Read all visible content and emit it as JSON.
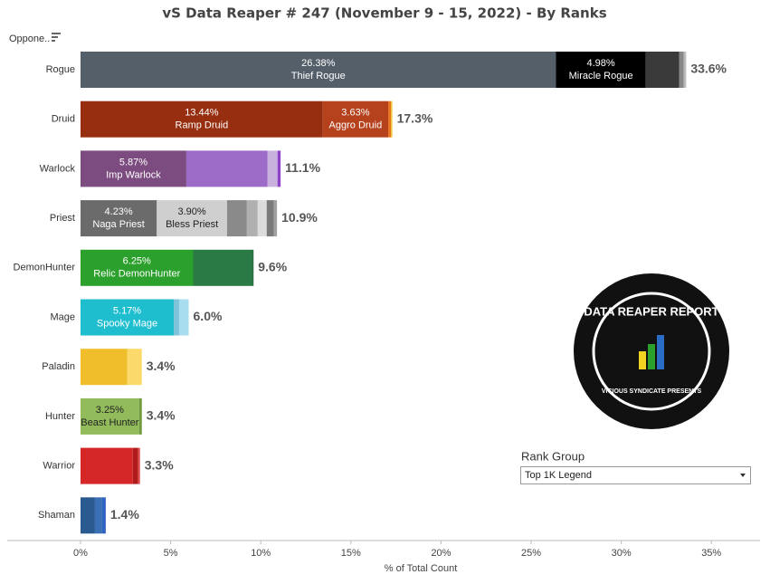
{
  "chart_data": {
    "type": "bar",
    "orientation": "horizontal",
    "stacked": true,
    "title": "vS Data Reaper #  247 (November 9 - 15, 2022) - By Ranks",
    "row_header": "Oppone..",
    "x_label": "% of Total Count",
    "xlim": [
      0,
      37.7
    ],
    "xticks": [
      {
        "value": 0,
        "label": "0%"
      },
      {
        "value": 5,
        "label": "5%"
      },
      {
        "value": 10,
        "label": "10%"
      },
      {
        "value": 15,
        "label": "15%"
      },
      {
        "value": 20,
        "label": "20%"
      },
      {
        "value": 25,
        "label": "25%"
      },
      {
        "value": 30,
        "label": "30%"
      },
      {
        "value": 35,
        "label": "35%"
      }
    ],
    "rows": [
      {
        "category": "Rogue",
        "total": {
          "value": 33.6,
          "label": "33.6%"
        },
        "segments": [
          {
            "name": "Thief Rogue",
            "value": 26.38,
            "value_label": "26.38%",
            "color": "#555f69"
          },
          {
            "name": "Miracle Rogue",
            "value": 4.98,
            "value_label": "4.98%",
            "color": "#000000"
          },
          {
            "value": 1.86,
            "color": "#3a3a3a"
          },
          {
            "value": 0.25,
            "color": "#888888"
          },
          {
            "value": 0.13,
            "color": "#bbbbbb"
          }
        ]
      },
      {
        "category": "Druid",
        "total": {
          "value": 17.3,
          "label": "17.3%"
        },
        "segments": [
          {
            "name": "Ramp Druid",
            "value": 13.44,
            "value_label": "13.44%",
            "color": "#962e0f"
          },
          {
            "name": "Aggro Druid",
            "value": 3.63,
            "value_label": "3.63%",
            "color": "#b5411d"
          },
          {
            "value": 0.15,
            "color": "#e8761e"
          },
          {
            "value": 0.08,
            "color": "#f3c23c"
          }
        ]
      },
      {
        "category": "Warlock",
        "total": {
          "value": 11.1,
          "label": "11.1%"
        },
        "segments": [
          {
            "name": "Imp Warlock",
            "value": 5.87,
            "value_label": "5.87%",
            "color": "#7c4b80"
          },
          {
            "value": 4.51,
            "color": "#9b6bc7"
          },
          {
            "value": 0.55,
            "color": "#c8b1dc"
          },
          {
            "value": 0.17,
            "color": "#8e44c9"
          }
        ]
      },
      {
        "category": "Priest",
        "total": {
          "value": 10.9,
          "label": "10.9%"
        },
        "segments": [
          {
            "name": "Naga Priest",
            "value": 4.23,
            "value_label": "4.23%",
            "color": "#6b6b6b"
          },
          {
            "name": "Bless Priest",
            "value": 3.9,
            "value_label": "3.90%",
            "color": "#cfcfcf"
          },
          {
            "value": 1.1,
            "color": "#8a8a8a"
          },
          {
            "value": 0.6,
            "color": "#b0b0b0"
          },
          {
            "value": 0.5,
            "color": "#dcdcdc"
          },
          {
            "value": 0.4,
            "color": "#7a7a7a"
          },
          {
            "value": 0.17,
            "color": "#a0a0a0"
          }
        ]
      },
      {
        "category": "DemonHunter",
        "total": {
          "value": 9.6,
          "label": "9.6%"
        },
        "segments": [
          {
            "name": "Relic DemonHunter",
            "value": 6.25,
            "value_label": "6.25%",
            "color": "#2ca02c"
          },
          {
            "value": 3.31,
            "color": "#2a7a45"
          },
          {
            "value": 0.04,
            "color": "#1a5e30"
          }
        ]
      },
      {
        "category": "Mage",
        "total": {
          "value": 6.0,
          "label": "6.0%"
        },
        "segments": [
          {
            "name": "Spooky Mage",
            "value": 5.17,
            "value_label": "5.17%",
            "color": "#1fbecf"
          },
          {
            "value": 0.3,
            "color": "#7fc3d8"
          },
          {
            "value": 0.53,
            "color": "#a8dcef"
          }
        ]
      },
      {
        "category": "Paladin",
        "total": {
          "value": 3.4,
          "label": "3.4%"
        },
        "segments": [
          {
            "value": 2.6,
            "color": "#f0be2a"
          },
          {
            "value": 0.8,
            "color": "#fcd96b"
          }
        ]
      },
      {
        "category": "Hunter",
        "total": {
          "value": 3.4,
          "label": "3.4%"
        },
        "segments": [
          {
            "name": "Beast Hunter",
            "value": 3.25,
            "value_label": "3.25%",
            "color": "#92bb5c"
          },
          {
            "value": 0.15,
            "color": "#6f9a3c"
          }
        ]
      },
      {
        "category": "Warrior",
        "total": {
          "value": 3.3,
          "label": "3.3%"
        },
        "segments": [
          {
            "value": 2.9,
            "color": "#d62728"
          },
          {
            "value": 0.3,
            "color": "#b01c1c"
          },
          {
            "value": 0.1,
            "color": "#e34b4b"
          }
        ]
      },
      {
        "category": "Shaman",
        "total": {
          "value": 1.4,
          "label": "1.4%"
        },
        "segments": [
          {
            "value": 0.8,
            "color": "#2a5a8f"
          },
          {
            "value": 0.4,
            "color": "#3a6fb5"
          },
          {
            "value": 0.2,
            "color": "#2f63c4"
          }
        ]
      }
    ],
    "filter": {
      "label": "Rank Group",
      "value": "Top 1K Legend"
    },
    "logo": {
      "title": "DATA REAPER REPORT",
      "subtitle": "VICIOUS SYNDICATE PRESENTS"
    }
  }
}
